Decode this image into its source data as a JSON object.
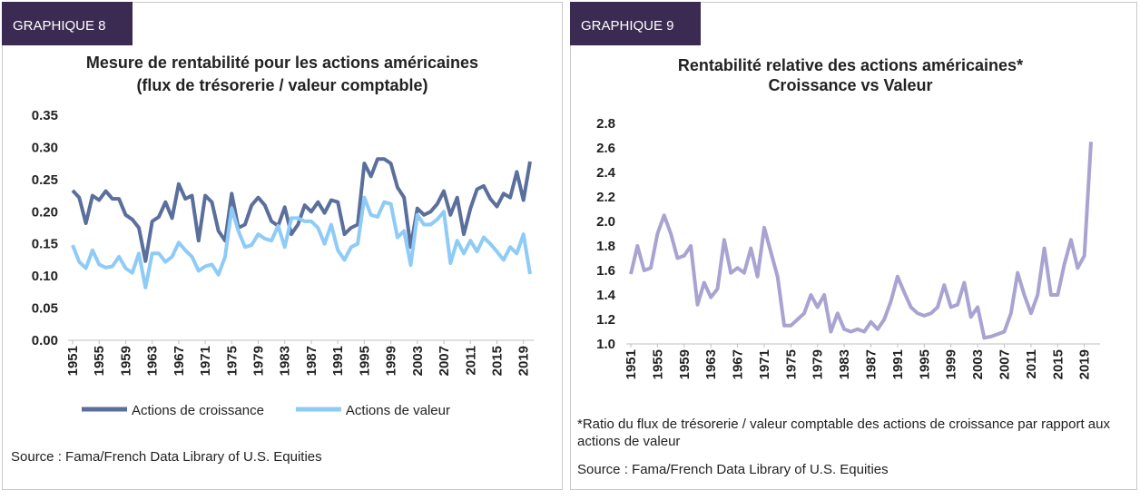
{
  "chart_data": [
    {
      "type": "line",
      "badge": "GRAPHIQUE 8",
      "title": "Mesure de rentabilité pour les actions américaines",
      "subtitle": "(flux de trésorerie / valeur comptable)",
      "source": "Source : Fama/French Data Library of U.S. Equities",
      "x": [
        1951,
        1952,
        1953,
        1954,
        1955,
        1956,
        1957,
        1958,
        1959,
        1960,
        1961,
        1962,
        1963,
        1964,
        1965,
        1966,
        1967,
        1968,
        1969,
        1970,
        1971,
        1972,
        1973,
        1974,
        1975,
        1976,
        1977,
        1978,
        1979,
        1980,
        1981,
        1982,
        1983,
        1984,
        1985,
        1986,
        1987,
        1988,
        1989,
        1990,
        1991,
        1992,
        1993,
        1994,
        1995,
        1996,
        1997,
        1998,
        1999,
        2000,
        2001,
        2002,
        2003,
        2004,
        2005,
        2006,
        2007,
        2008,
        2009,
        2010,
        2011,
        2012,
        2013,
        2014,
        2015,
        2016,
        2017,
        2018,
        2019,
        2020
      ],
      "xlim": [
        1951,
        2020
      ],
      "xticks": [
        1951,
        1955,
        1959,
        1963,
        1967,
        1971,
        1975,
        1979,
        1983,
        1987,
        1991,
        1995,
        1999,
        2003,
        2007,
        2011,
        2015,
        2019
      ],
      "ylim": [
        0,
        0.35
      ],
      "yticks": [
        {
          "value": 0,
          "label": "0.00"
        },
        {
          "value": 0.05,
          "label": "0.05"
        },
        {
          "value": 0.1,
          "label": "0.10"
        },
        {
          "value": 0.15,
          "label": "0.15"
        },
        {
          "value": 0.2,
          "label": "0.20"
        },
        {
          "value": 0.25,
          "label": "0.25"
        },
        {
          "value": 0.3,
          "label": "0.30"
        },
        {
          "value": 0.35,
          "label": "0.35"
        }
      ],
      "legend": "bottom",
      "series": [
        {
          "name": "Actions de croissance",
          "color": "#5a6f9b",
          "values": [
            0.233,
            0.222,
            0.182,
            0.225,
            0.218,
            0.232,
            0.22,
            0.22,
            0.195,
            0.188,
            0.175,
            0.123,
            0.185,
            0.192,
            0.215,
            0.19,
            0.243,
            0.22,
            0.225,
            0.155,
            0.225,
            0.215,
            0.17,
            0.155,
            0.228,
            0.175,
            0.18,
            0.21,
            0.222,
            0.21,
            0.185,
            0.178,
            0.207,
            0.165,
            0.18,
            0.21,
            0.2,
            0.215,
            0.198,
            0.218,
            0.215,
            0.165,
            0.175,
            0.18,
            0.275,
            0.255,
            0.282,
            0.282,
            0.275,
            0.238,
            0.222,
            0.145,
            0.205,
            0.195,
            0.2,
            0.212,
            0.232,
            0.195,
            0.222,
            0.165,
            0.205,
            0.235,
            0.24,
            0.22,
            0.208,
            0.228,
            0.222,
            0.262,
            0.218,
            0.278
          ]
        },
        {
          "name": "Actions de valeur",
          "color": "#8ecbf7",
          "values": [
            0.148,
            0.122,
            0.112,
            0.14,
            0.118,
            0.113,
            0.115,
            0.13,
            0.112,
            0.105,
            0.135,
            0.082,
            0.135,
            0.135,
            0.122,
            0.13,
            0.152,
            0.14,
            0.13,
            0.108,
            0.115,
            0.118,
            0.102,
            0.13,
            0.205,
            0.17,
            0.145,
            0.148,
            0.165,
            0.158,
            0.155,
            0.178,
            0.145,
            0.19,
            0.19,
            0.185,
            0.185,
            0.175,
            0.15,
            0.18,
            0.14,
            0.125,
            0.145,
            0.15,
            0.222,
            0.195,
            0.192,
            0.215,
            0.212,
            0.16,
            0.17,
            0.117,
            0.195,
            0.18,
            0.18,
            0.188,
            0.2,
            0.12,
            0.155,
            0.135,
            0.155,
            0.138,
            0.16,
            0.15,
            0.138,
            0.125,
            0.145,
            0.135,
            0.165,
            0.103
          ]
        }
      ]
    },
    {
      "type": "line",
      "badge": "GRAPHIQUE 9",
      "title": "Rentabilité relative des actions américaines*",
      "subtitle": "Croissance vs Valeur",
      "note": "*Ratio du flux de trésorerie / valeur comptable des actions de croissance par rapport aux actions de valeur",
      "source": "Source : Fama/French Data Library of U.S. Equities",
      "x": [
        1951,
        1952,
        1953,
        1954,
        1955,
        1956,
        1957,
        1958,
        1959,
        1960,
        1961,
        1962,
        1963,
        1964,
        1965,
        1966,
        1967,
        1968,
        1969,
        1970,
        1971,
        1972,
        1973,
        1974,
        1975,
        1976,
        1977,
        1978,
        1979,
        1980,
        1981,
        1982,
        1983,
        1984,
        1985,
        1986,
        1987,
        1988,
        1989,
        1990,
        1991,
        1992,
        1993,
        1994,
        1995,
        1996,
        1997,
        1998,
        1999,
        2000,
        2001,
        2002,
        2003,
        2004,
        2005,
        2006,
        2007,
        2008,
        2009,
        2010,
        2011,
        2012,
        2013,
        2014,
        2015,
        2016,
        2017,
        2018,
        2019,
        2020
      ],
      "xlim": [
        1951,
        2020
      ],
      "xticks": [
        1951,
        1955,
        1959,
        1963,
        1967,
        1971,
        1975,
        1979,
        1983,
        1987,
        1991,
        1995,
        1999,
        2003,
        2007,
        2011,
        2015,
        2019
      ],
      "ylim": [
        1,
        2.8
      ],
      "yticks": [
        {
          "value": 1,
          "label": "1.0"
        },
        1.2,
        1.4,
        1.6,
        1.8,
        {
          "value": 2,
          "label": "2.0"
        },
        2.2,
        2.4,
        2.6,
        2.8
      ],
      "color": "#a8a3d1",
      "values": [
        1.57,
        1.8,
        1.6,
        1.62,
        1.9,
        2.05,
        1.9,
        1.7,
        1.72,
        1.8,
        1.32,
        1.5,
        1.38,
        1.45,
        1.85,
        1.58,
        1.62,
        1.58,
        1.78,
        1.55,
        1.95,
        1.75,
        1.55,
        1.15,
        1.15,
        1.2,
        1.25,
        1.4,
        1.3,
        1.4,
        1.1,
        1.25,
        1.12,
        1.1,
        1.12,
        1.1,
        1.18,
        1.12,
        1.2,
        1.35,
        1.55,
        1.42,
        1.3,
        1.25,
        1.23,
        1.25,
        1.3,
        1.48,
        1.3,
        1.32,
        1.5,
        1.22,
        1.3,
        1.05,
        1.06,
        1.08,
        1.1,
        1.25,
        1.58,
        1.4,
        1.25,
        1.4,
        1.78,
        1.4,
        1.4,
        1.65,
        1.85,
        1.62,
        1.72,
        2.65
      ]
    }
  ]
}
